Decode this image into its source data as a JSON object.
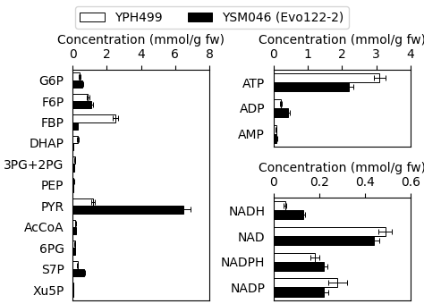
{
  "chart_data": [
    {
      "type": "bar",
      "orientation": "horizontal",
      "legend": "upper center",
      "grid": false,
      "categories": [
        "G6P",
        "F6P",
        "FBP",
        "DHAP",
        "3PG+2PG",
        "PEP",
        "PYR",
        "AcCoA",
        "6PG",
        "S7P",
        "Xu5P"
      ],
      "x_label": "Concentration (mmol/g fw)",
      "xlim": [
        0,
        8
      ],
      "xticks": [
        0,
        2,
        4,
        6,
        8
      ],
      "series": [
        {
          "name": "YPH499",
          "color": "white",
          "values": [
            0.4,
            0.9,
            2.5,
            0.3,
            0.12,
            0.06,
            1.2,
            0.15,
            0.12,
            0.28,
            0.02
          ],
          "errors": [
            0.04,
            0.07,
            0.18,
            0.03,
            0.01,
            0.01,
            0.12,
            0.02,
            0.01,
            0.03,
            0.003
          ]
        },
        {
          "name": "YSM046 (Evo122-2)",
          "color": "black",
          "values": [
            0.55,
            1.1,
            0.28,
            0.05,
            0.07,
            0.04,
            6.5,
            0.18,
            0.15,
            0.65,
            0.02
          ],
          "errors": [
            0.04,
            0.08,
            0.03,
            0.005,
            0.01,
            0.005,
            0.38,
            0.02,
            0.015,
            0.06,
            0.003
          ]
        }
      ]
    },
    {
      "type": "bar",
      "orientation": "horizontal",
      "grid": false,
      "categories": [
        "ATP",
        "ADP",
        "AMP"
      ],
      "x_label": "Concentration (mmol/g fw)",
      "xlim": [
        0,
        4
      ],
      "xticks": [
        0,
        1,
        2,
        3,
        4
      ],
      "series": [
        {
          "name": "YPH499",
          "color": "white",
          "values": [
            3.1,
            0.22,
            0.07
          ],
          "errors": [
            0.18,
            0.025,
            0.008
          ]
        },
        {
          "name": "YSM046 (Evo122-2)",
          "color": "black",
          "values": [
            2.2,
            0.42,
            0.09
          ],
          "errors": [
            0.12,
            0.04,
            0.01
          ]
        }
      ]
    },
    {
      "type": "bar",
      "orientation": "horizontal",
      "grid": false,
      "categories": [
        "NADH",
        "NAD",
        "NADPH",
        "NADP"
      ],
      "x_label": "Concentration (mmol/g fw)",
      "xlim": [
        0,
        0.6
      ],
      "xticks": [
        0,
        0.2,
        0.4,
        0.6
      ],
      "series": [
        {
          "name": "YPH499",
          "color": "white",
          "values": [
            0.05,
            0.49,
            0.18,
            0.28
          ],
          "errors": [
            0.005,
            0.03,
            0.02,
            0.04
          ]
        },
        {
          "name": "YSM046 (Evo122-2)",
          "color": "black",
          "values": [
            0.13,
            0.44,
            0.22,
            0.22
          ],
          "errors": [
            0.008,
            0.025,
            0.015,
            0.018
          ]
        }
      ]
    }
  ]
}
